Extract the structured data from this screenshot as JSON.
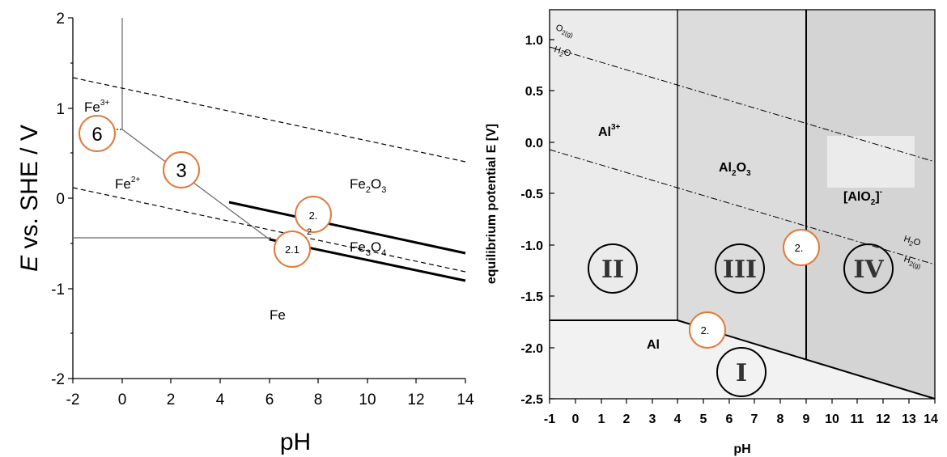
{
  "left": {
    "xlabel": "pH",
    "ylabel_italic": "E",
    "ylabel_rest": " vs. SHE / V",
    "xticks": [
      "-2",
      "0",
      "2",
      "4",
      "6",
      "8",
      "10",
      "12",
      "14"
    ],
    "yticks": [
      "2",
      "1",
      "0",
      "-1",
      "-2"
    ],
    "regions": {
      "fe3_base": "Fe",
      "fe3_sup": "3+",
      "fe2_base": "Fe",
      "fe2_sup": "2+",
      "fe2o3_base": "Fe",
      "fe2o3_sub": "2",
      "fe2o3_tail": "O",
      "fe2o3_sub2": "3",
      "fe3o4_base": "Fe",
      "fe3o4_sub": "3",
      "fe3o4_tail": "O",
      "fe3o4_sub2": "4",
      "fe": "Fe"
    },
    "markers": {
      "m6": "6",
      "m3": "3",
      "m2": "2.",
      "m2_sub": "2",
      "m21": "2.1"
    }
  },
  "right": {
    "xlabel": "pH",
    "ylabel": "equilibrium potential E [V]",
    "xticks": [
      "-1",
      "0",
      "1",
      "2",
      "3",
      "4",
      "5",
      "6",
      "7",
      "8",
      "9",
      "10",
      "11",
      "12",
      "13",
      "14"
    ],
    "yticks": [
      "1.0",
      "0.5",
      "0.0",
      "-0.5",
      "-1.0",
      "-1.5",
      "-2.0",
      "-2.5"
    ],
    "regions": {
      "al3_base": "Al",
      "al3_sup": "3+",
      "al2o3_base": "Al",
      "al2o3_sub": "2",
      "al2o3_tail": "O",
      "al2o3_sub2": "3",
      "alo2_base": "[AlO",
      "alo2_sub": "2",
      "alo2_tail": "]",
      "alo2_sup": "-",
      "al": "Al"
    },
    "water": {
      "o2_base": "O",
      "o2_sub": "2(g)",
      "h2o_top_base": "H",
      "h2o_top_sub": "2",
      "h2o_top_tail": "O",
      "h2o_bot_base": "H",
      "h2o_bot_sub": "2",
      "h2o_bot_tail": "O",
      "h2_base": "H",
      "h2_sub": "2(g)"
    },
    "roman": {
      "i": "I",
      "ii": "II",
      "iii": "III",
      "iv": "IV"
    },
    "markers": {
      "m2a": "2.",
      "m2b": "2."
    }
  },
  "colors": {
    "marker": "#e07a3a",
    "region_light": "#ebebeb",
    "region_mid": "#dcdcdc",
    "region_dark": "#d4d4d4",
    "region_al": "#f2f2f2"
  }
}
